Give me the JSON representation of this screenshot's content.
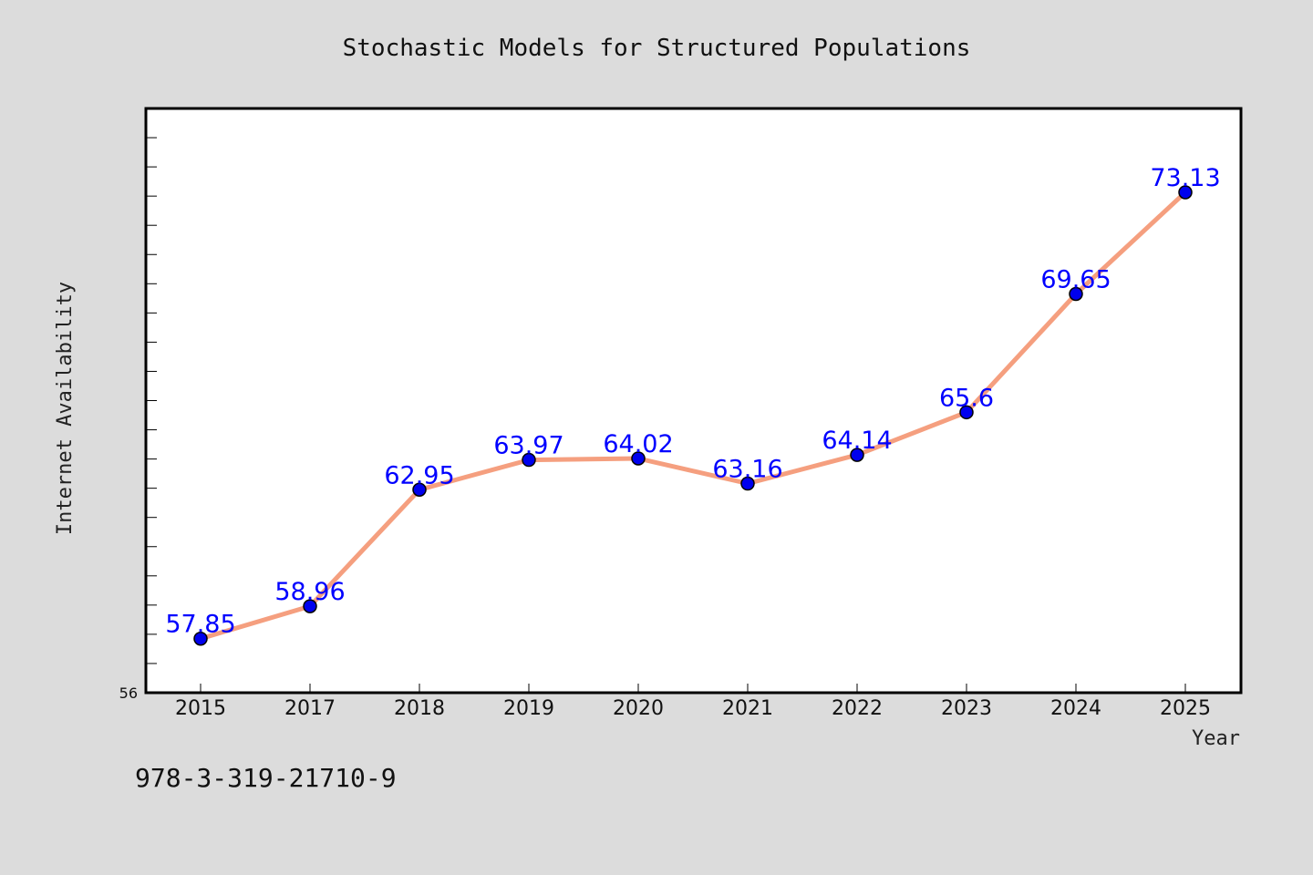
{
  "chart_data": {
    "type": "line",
    "title": "Stochastic Models for Structured Populations",
    "xlabel": "Year",
    "ylabel": "Internet Availability",
    "categories": [
      "2015",
      "2017",
      "2018",
      "2019",
      "2020",
      "2021",
      "2022",
      "2023",
      "2024",
      "2025"
    ],
    "series": [
      {
        "values": [
          57.85,
          58.96,
          62.95,
          63.97,
          64.02,
          63.16,
          64.14,
          65.6,
          69.65,
          73.13
        ],
        "data_labels": [
          "57.85",
          "58.96",
          "62.95",
          "63.97",
          "64.02",
          "63.16",
          "64.14",
          "65.6",
          "69.65",
          "73.13"
        ]
      }
    ],
    "ylim": [
      56,
      76
    ],
    "y_tick_labels": [
      "56"
    ],
    "grid": false,
    "legend": "none",
    "colors": {
      "line": "#f59f7f",
      "marker": "#0000ee",
      "marker_edge": "#000000",
      "data_label": "#0000ff",
      "plot_background": "#ffffff",
      "figure_background": "#dcdcdc"
    }
  },
  "footer": {
    "text": "978-3-319-21710-9"
  }
}
